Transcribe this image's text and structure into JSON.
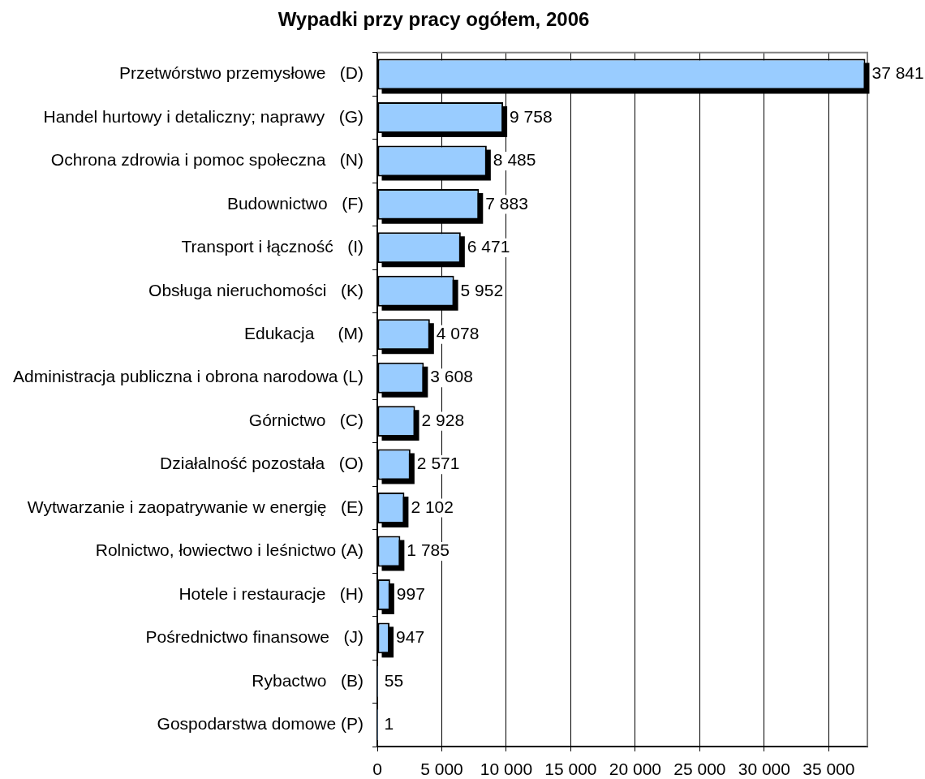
{
  "chart_data": {
    "type": "bar",
    "orientation": "horizontal",
    "title": "Wypadki przy pracy ogółem, 2006",
    "categories": [
      "Przetwórstwo przemysłowe   (D)",
      "Handel hurtowy i detaliczny; naprawy   (G)",
      "Ochrona zdrowia i pomoc społeczna   (N)",
      "Budownictwo   (F)",
      "Transport i łączność   (I)",
      "Obsługa nieruchomości   (K)",
      "Edukacja     (M)",
      "Administracja publiczna i obrona narodowa (L)",
      "Górnictwo   (C)",
      "Działalność pozostała   (O)",
      "Wytwarzanie i zaopatrywanie w energię   (E)",
      "Rolnictwo, łowiectwo i leśnictwo (A)",
      "Hotele i restauracje   (H)",
      "Pośrednictwo finansowe   (J)",
      "Rybactwo   (B)",
      "Gospodarstwa domowe (P)"
    ],
    "values": [
      37841,
      9758,
      8485,
      7883,
      6471,
      5952,
      4078,
      3608,
      2928,
      2571,
      2102,
      1785,
      997,
      947,
      55,
      1
    ],
    "value_labels": [
      "37 841",
      "9 758",
      "8 485",
      "7 883",
      "6 471",
      "5 952",
      "4 078",
      "3 608",
      "2 928",
      "2 571",
      "2 102",
      "1 785",
      "997",
      "947",
      "55",
      "1"
    ],
    "color": "#99ccff",
    "xlim": [
      0,
      38000
    ],
    "xticks": [
      0,
      {
        "value": 5000,
        "label": "5 000"
      },
      {
        "value": 10000,
        "label": "10 000"
      },
      {
        "value": 15000,
        "label": "15 000"
      },
      {
        "value": 20000,
        "label": "20 000"
      },
      {
        "value": 25000,
        "label": "25 000"
      },
      {
        "value": 30000,
        "label": "30 000"
      },
      {
        "value": 35000,
        "label": "35 000"
      }
    ],
    "grid": "x"
  }
}
